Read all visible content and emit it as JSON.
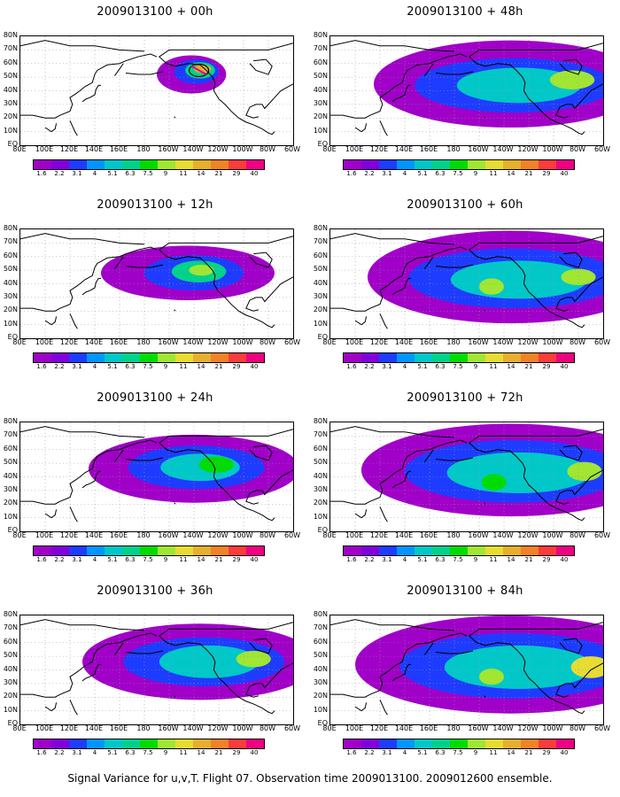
{
  "panels": [
    {
      "title": "2009013100 + 00h",
      "blobs": []
    },
    {
      "title": "2009013100 + 12h"
    },
    {
      "title": "2009013100 + 24h"
    },
    {
      "title": "2009013100 + 36h"
    },
    {
      "title": "2009013100 + 48h"
    },
    {
      "title": "2009013100 + 60h"
    },
    {
      "title": "2009013100 + 72h"
    },
    {
      "title": "2009013100 + 84h"
    }
  ],
  "axes": {
    "longitudes": [
      "80E",
      "100E",
      "120E",
      "140E",
      "160E",
      "180",
      "160W",
      "140W",
      "120W",
      "100W",
      "80W",
      "60W"
    ],
    "latitudes": [
      "EQ",
      "10N",
      "20N",
      "30N",
      "40N",
      "50N",
      "60N",
      "70N",
      "80N"
    ]
  },
  "colorbar": {
    "levels": [
      "1.6",
      "2.2",
      "3.1",
      "4",
      "5.1",
      "6.3",
      "7.5",
      "9",
      "11",
      "14",
      "21",
      "29",
      "40"
    ],
    "colors": [
      "#a000c8",
      "#8200dc",
      "#1e3cff",
      "#0096ff",
      "#00c8c8",
      "#00d28c",
      "#00dc00",
      "#a0e632",
      "#e6dc32",
      "#e6af2d",
      "#f08228",
      "#fa3c3c",
      "#f00082"
    ]
  },
  "caption": "Signal Variance for u,v,T. Flight 07. Observation time 2009013100. 2009012600 ensemble.",
  "chart_data": {
    "type": "heatmap",
    "title": "Signal Variance for u,v,T. Flight 07. Observation time 2009013100. 2009012600 ensemble.",
    "lead_times_h": [
      0,
      12,
      24,
      36,
      48,
      60,
      72,
      84
    ],
    "lon_range": [
      "80E",
      "60W"
    ],
    "lat_range": [
      "EQ",
      "80N"
    ],
    "contour_levels": [
      1.6,
      2.2,
      3.1,
      4,
      5.1,
      6.3,
      7.5,
      9,
      11,
      14,
      21,
      29,
      40
    ]
  }
}
